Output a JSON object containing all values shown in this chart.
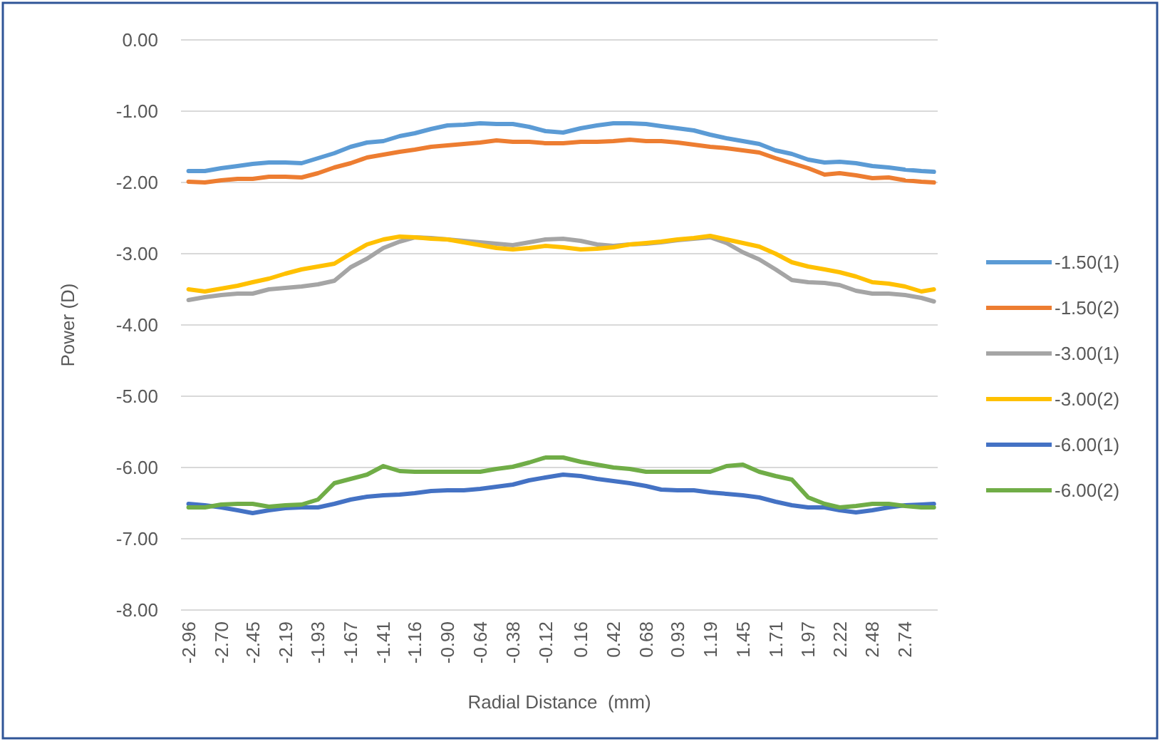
{
  "chart_data": {
    "type": "line",
    "xlabel": "Radial Distance  (mm)",
    "ylabel": "Power (D)",
    "x": [
      -2.96,
      -2.83,
      -2.7,
      -2.57,
      -2.45,
      -2.32,
      -2.19,
      -2.06,
      -1.93,
      -1.8,
      -1.67,
      -1.54,
      -1.41,
      -1.28,
      -1.16,
      -1.03,
      -0.9,
      -0.77,
      -0.64,
      -0.51,
      -0.38,
      -0.25,
      -0.12,
      0.02,
      0.16,
      0.29,
      0.42,
      0.55,
      0.68,
      0.8,
      0.93,
      1.06,
      1.19,
      1.32,
      1.45,
      1.58,
      1.71,
      1.84,
      1.97,
      2.1,
      2.22,
      2.35,
      2.48,
      2.61,
      2.74,
      2.87,
      2.97
    ],
    "series": [
      {
        "name": "-1.50(1)",
        "color": "#5b9bd5",
        "values": [
          -1.84,
          -1.84,
          -1.8,
          -1.77,
          -1.74,
          -1.72,
          -1.72,
          -1.73,
          -1.66,
          -1.59,
          -1.5,
          -1.44,
          -1.42,
          -1.35,
          -1.31,
          -1.25,
          -1.2,
          -1.19,
          -1.17,
          -1.18,
          -1.18,
          -1.22,
          -1.28,
          -1.3,
          -1.24,
          -1.2,
          -1.17,
          -1.17,
          -1.18,
          -1.21,
          -1.24,
          -1.27,
          -1.33,
          -1.38,
          -1.42,
          -1.46,
          -1.55,
          -1.6,
          -1.68,
          -1.72,
          -1.71,
          -1.73,
          -1.77,
          -1.79,
          -1.82,
          -1.84,
          -1.85
        ]
      },
      {
        "name": "-1.50(2)",
        "color": "#ed7d31",
        "values": [
          -1.99,
          -2.0,
          -1.97,
          -1.95,
          -1.95,
          -1.92,
          -1.92,
          -1.93,
          -1.87,
          -1.79,
          -1.73,
          -1.65,
          -1.61,
          -1.57,
          -1.54,
          -1.5,
          -1.48,
          -1.46,
          -1.44,
          -1.41,
          -1.43,
          -1.43,
          -1.45,
          -1.45,
          -1.43,
          -1.43,
          -1.42,
          -1.4,
          -1.42,
          -1.42,
          -1.44,
          -1.47,
          -1.5,
          -1.52,
          -1.55,
          -1.58,
          -1.66,
          -1.73,
          -1.8,
          -1.89,
          -1.87,
          -1.9,
          -1.94,
          -1.93,
          -1.97,
          -1.99,
          -2.0
        ]
      },
      {
        "name": "-3.00(1)",
        "color": "#a5a5a5",
        "values": [
          -3.65,
          -3.61,
          -3.58,
          -3.56,
          -3.56,
          -3.5,
          -3.48,
          -3.46,
          -3.43,
          -3.38,
          -3.19,
          -3.07,
          -2.92,
          -2.83,
          -2.77,
          -2.78,
          -2.8,
          -2.82,
          -2.84,
          -2.86,
          -2.88,
          -2.84,
          -2.8,
          -2.79,
          -2.82,
          -2.87,
          -2.89,
          -2.87,
          -2.86,
          -2.84,
          -2.81,
          -2.79,
          -2.77,
          -2.85,
          -2.98,
          -3.08,
          -3.22,
          -3.37,
          -3.4,
          -3.41,
          -3.44,
          -3.52,
          -3.56,
          -3.56,
          -3.58,
          -3.62,
          -3.67
        ]
      },
      {
        "name": "-3.00(2)",
        "color": "#ffc000",
        "values": [
          -3.5,
          -3.53,
          -3.49,
          -3.45,
          -3.4,
          -3.35,
          -3.28,
          -3.22,
          -3.18,
          -3.14,
          -3.0,
          -2.87,
          -2.8,
          -2.76,
          -2.77,
          -2.79,
          -2.8,
          -2.84,
          -2.88,
          -2.92,
          -2.94,
          -2.92,
          -2.89,
          -2.91,
          -2.94,
          -2.93,
          -2.91,
          -2.87,
          -2.85,
          -2.83,
          -2.8,
          -2.78,
          -2.75,
          -2.8,
          -2.85,
          -2.9,
          -3.0,
          -3.12,
          -3.18,
          -3.22,
          -3.26,
          -3.32,
          -3.4,
          -3.42,
          -3.46,
          -3.53,
          -3.5
        ]
      },
      {
        "name": "-6.00(1)",
        "color": "#4472c4",
        "values": [
          -6.51,
          -6.53,
          -6.56,
          -6.6,
          -6.64,
          -6.6,
          -6.57,
          -6.56,
          -6.56,
          -6.51,
          -6.45,
          -6.41,
          -6.39,
          -6.38,
          -6.36,
          -6.33,
          -6.32,
          -6.32,
          -6.3,
          -6.27,
          -6.24,
          -6.18,
          -6.14,
          -6.1,
          -6.12,
          -6.16,
          -6.19,
          -6.22,
          -6.26,
          -6.31,
          -6.32,
          -6.32,
          -6.35,
          -6.37,
          -6.39,
          -6.42,
          -6.48,
          -6.53,
          -6.56,
          -6.56,
          -6.6,
          -6.63,
          -6.6,
          -6.56,
          -6.53,
          -6.52,
          -6.51
        ]
      },
      {
        "name": "-6.00(2)",
        "color": "#70ad47",
        "values": [
          -6.56,
          -6.56,
          -6.52,
          -6.51,
          -6.51,
          -6.55,
          -6.53,
          -6.52,
          -6.45,
          -6.22,
          -6.16,
          -6.1,
          -5.98,
          -6.05,
          -6.06,
          -6.06,
          -6.06,
          -6.06,
          -6.06,
          -6.02,
          -5.99,
          -5.93,
          -5.86,
          -5.86,
          -5.92,
          -5.96,
          -6.0,
          -6.02,
          -6.06,
          -6.06,
          -6.06,
          -6.06,
          -6.06,
          -5.98,
          -5.96,
          -6.06,
          -6.12,
          -6.17,
          -6.42,
          -6.51,
          -6.56,
          -6.54,
          -6.51,
          -6.51,
          -6.54,
          -6.56,
          -6.56
        ]
      }
    ],
    "xlim": [
      -3.02,
      3.0
    ],
    "xticks": [
      -2.96,
      {
        "value": -2.7,
        "label": "-2.70"
      },
      -2.45,
      -2.19,
      -1.93,
      -1.67,
      -1.41,
      -1.16,
      {
        "value": -0.9,
        "label": "-0.90"
      },
      -0.64,
      -0.38,
      -0.12,
      0.16,
      0.42,
      0.68,
      0.93,
      1.19,
      1.45,
      1.71,
      1.97,
      2.22,
      2.48,
      2.74
    ],
    "ylim": [
      -8,
      0
    ],
    "yticks": [
      {
        "value": 0,
        "label": "0.00"
      },
      {
        "value": -1,
        "label": "-1.00"
      },
      {
        "value": -2,
        "label": "-2.00"
      },
      {
        "value": -3,
        "label": "-3.00"
      },
      {
        "value": -4,
        "label": "-4.00"
      },
      {
        "value": -5,
        "label": "-5.00"
      },
      {
        "value": -6,
        "label": "-6.00"
      },
      {
        "value": -7,
        "label": "-7.00"
      },
      {
        "value": -8,
        "label": "-8.00"
      }
    ],
    "grid": "y",
    "legend": "right",
    "marker": "none",
    "line_style": "solid"
  }
}
